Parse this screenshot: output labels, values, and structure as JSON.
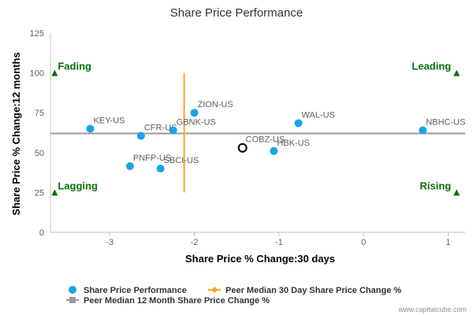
{
  "chart_data": {
    "type": "scatter",
    "title": "Share Price Performance",
    "xlabel": "Share Price % Change:30 days",
    "ylabel": "Share Price % Change:12 months",
    "xlim": [
      -3.7,
      1.2
    ],
    "ylim": [
      0,
      125
    ],
    "x_ticks": [
      -3,
      -2,
      -1,
      0,
      1
    ],
    "y_ticks": [
      0,
      25,
      50,
      75,
      100,
      125
    ],
    "grid": false,
    "series": [
      {
        "name": "Share Price Performance",
        "color": "#1aa3e8",
        "points": [
          {
            "label": "KEY-US",
            "x": -3.23,
            "y": 65
          },
          {
            "label": "CFR-US",
            "x": -2.63,
            "y": 60.5
          },
          {
            "label": "GBNK-US",
            "x": -2.25,
            "y": 64
          },
          {
            "label": "ZION-US",
            "x": -2.0,
            "y": 75
          },
          {
            "label": "WAL-US",
            "x": -0.77,
            "y": 68.5
          },
          {
            "label": "NBHC-US",
            "x": 0.7,
            "y": 64
          },
          {
            "label": "PNFP-US",
            "x": -2.76,
            "y": 41.5
          },
          {
            "label": "SBCI-US",
            "x": -2.4,
            "y": 40
          },
          {
            "label": "HBK-US",
            "x": -1.06,
            "y": 51
          }
        ]
      }
    ],
    "highlight": {
      "label": "COBZ-US",
      "x": -1.43,
      "y": 53
    },
    "peer_median_30_day": {
      "name": "Peer Median 30 Day Share Price Change %",
      "x": -2.12,
      "y_range": [
        25,
        100
      ],
      "color": "#f5a623"
    },
    "peer_median_12_month": {
      "name": "Peer Median 12 Month Share Price Change %",
      "y": 62,
      "color": "#999999"
    },
    "quadrants": [
      {
        "label": "Fading",
        "x": -3.65,
        "y": 100,
        "align": "start"
      },
      {
        "label": "Leading",
        "x": 1.1,
        "y": 100,
        "align": "end"
      },
      {
        "label": "Lagging",
        "x": -3.65,
        "y": 25,
        "align": "start"
      },
      {
        "label": "Rising",
        "x": 1.1,
        "y": 25,
        "align": "end"
      }
    ],
    "legend": {
      "placement": "bottom-left",
      "items": [
        "Share Price Performance",
        "Peer Median 30 Day Share Price Change %",
        "Peer Median 12 Month Share Price Change %"
      ]
    },
    "credit": "www.capitalcube.com"
  }
}
